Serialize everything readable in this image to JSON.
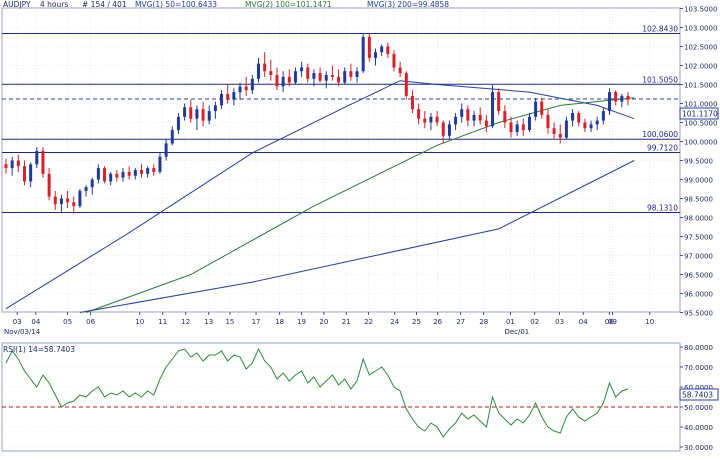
{
  "header": {
    "symbol": "AUDJPY",
    "timeframe": "4 hours",
    "bars": "# 154 / 401",
    "ma1_label": "MVG(1) 50=100.6433",
    "ma2_label": "MVG(2) 100=101.1471",
    "ma3_label": "MVG(3) 200=99.4858"
  },
  "colors": {
    "up_candle": "#1f3a9a",
    "down_candle": "#d8202a",
    "ma50": "#243f9a",
    "ma100": "#2f7a3a",
    "ma200": "#243f9a",
    "levels": "#1e2a7a",
    "current_price": "#2a3fa0",
    "rsi_line": "#2d8a3a",
    "rsi_50_line": "#b21e1e",
    "axis_text": "#1f2a66",
    "grid": "#d9dde8"
  },
  "chart_data": [
    {
      "type": "line",
      "title": "AUDJPY , 4 hours, # 154 / 401",
      "ylim": [
        95.5,
        103.5
      ],
      "y_ticks": [
        "103.5000",
        "103.0000",
        "102.5000",
        "102.0000",
        "101.5000",
        "101.0000",
        "100.5000",
        "100.0000",
        "99.5000",
        "99.0000",
        "98.5000",
        "98.0000",
        "97.5000",
        "97.0000",
        "96.5000",
        "96.0000",
        "95.5000"
      ],
      "x_ticks": [
        "03",
        "04",
        "05",
        "06",
        "10",
        "11",
        "12",
        "13",
        "15",
        "17",
        "18",
        "19",
        "20",
        "21",
        "22",
        "24",
        "25",
        "26",
        "27",
        "28",
        "01",
        "02",
        "03",
        "04",
        "06",
        "09",
        "10"
      ],
      "x_date_labels": [
        "Nov/03/14",
        "Dec/01"
      ],
      "horizontal_levels": [
        "102.8430",
        "101.5050",
        "100.0600",
        "99.7120",
        "98.1310"
      ],
      "current_price": "101.1170",
      "candles_ohlc": [
        [
          99.4,
          99.55,
          99.15,
          99.3
        ],
        [
          99.3,
          99.6,
          99.1,
          99.5
        ],
        [
          99.5,
          99.65,
          99.2,
          99.35
        ],
        [
          99.35,
          99.5,
          98.85,
          98.95
        ],
        [
          98.95,
          99.45,
          98.8,
          99.4
        ],
        [
          99.4,
          99.85,
          99.3,
          99.75
        ],
        [
          99.75,
          99.85,
          99.05,
          99.15
        ],
        [
          99.15,
          99.3,
          98.45,
          98.55
        ],
        [
          98.55,
          98.7,
          98.2,
          98.35
        ],
        [
          98.35,
          98.6,
          98.15,
          98.5
        ],
        [
          98.5,
          98.7,
          98.25,
          98.4
        ],
        [
          98.4,
          98.55,
          98.1,
          98.3
        ],
        [
          98.3,
          98.75,
          98.25,
          98.7
        ],
        [
          98.7,
          98.85,
          98.55,
          98.8
        ],
        [
          98.8,
          99.05,
          98.6,
          99.0
        ],
        [
          99.0,
          99.4,
          98.9,
          99.3
        ],
        [
          99.3,
          99.35,
          98.9,
          98.95
        ],
        [
          98.95,
          99.2,
          98.85,
          99.15
        ],
        [
          99.15,
          99.25,
          98.95,
          99.05
        ],
        [
          99.05,
          99.3,
          98.95,
          99.2
        ],
        [
          99.2,
          99.35,
          99.0,
          99.1
        ],
        [
          99.1,
          99.3,
          99.0,
          99.25
        ],
        [
          99.25,
          99.4,
          99.05,
          99.15
        ],
        [
          99.15,
          99.35,
          99.05,
          99.3
        ],
        [
          99.3,
          99.4,
          99.1,
          99.2
        ],
        [
          99.2,
          99.7,
          99.15,
          99.6
        ],
        [
          99.6,
          100.05,
          99.5,
          99.95
        ],
        [
          99.95,
          100.4,
          99.9,
          100.3
        ],
        [
          100.3,
          100.75,
          100.2,
          100.65
        ],
        [
          100.65,
          101.0,
          100.55,
          100.9
        ],
        [
          100.9,
          101.1,
          100.5,
          100.6
        ],
        [
          100.6,
          100.95,
          100.3,
          100.85
        ],
        [
          100.85,
          101.05,
          100.4,
          100.55
        ],
        [
          100.55,
          100.95,
          100.45,
          100.8
        ],
        [
          100.8,
          101.05,
          100.6,
          100.95
        ],
        [
          100.95,
          101.35,
          100.85,
          101.25
        ],
        [
          101.25,
          101.5,
          101.0,
          101.1
        ],
        [
          101.1,
          101.4,
          100.95,
          101.3
        ],
        [
          101.3,
          101.55,
          101.1,
          101.45
        ],
        [
          101.45,
          101.7,
          101.2,
          101.35
        ],
        [
          101.35,
          101.75,
          101.25,
          101.65
        ],
        [
          101.65,
          102.2,
          101.55,
          102.05
        ],
        [
          102.05,
          102.35,
          101.7,
          101.85
        ],
        [
          101.85,
          102.15,
          101.6,
          101.75
        ],
        [
          101.75,
          101.95,
          101.35,
          101.45
        ],
        [
          101.45,
          101.85,
          101.3,
          101.7
        ],
        [
          101.7,
          101.9,
          101.45,
          101.55
        ],
        [
          101.55,
          101.95,
          101.5,
          101.85
        ],
        [
          101.85,
          102.1,
          101.7,
          101.95
        ],
        [
          101.95,
          102.05,
          101.55,
          101.65
        ],
        [
          101.65,
          101.9,
          101.45,
          101.8
        ],
        [
          101.8,
          101.95,
          101.55,
          101.6
        ],
        [
          101.6,
          101.85,
          101.4,
          101.75
        ],
        [
          101.75,
          102.0,
          101.6,
          101.7
        ],
        [
          101.7,
          101.9,
          101.45,
          101.55
        ],
        [
          101.55,
          101.95,
          101.5,
          101.85
        ],
        [
          101.85,
          102.05,
          101.6,
          101.7
        ],
        [
          101.7,
          101.95,
          101.55,
          101.85
        ],
        [
          101.85,
          102.85,
          101.8,
          102.75
        ],
        [
          102.75,
          102.85,
          102.1,
          102.2
        ],
        [
          102.2,
          102.45,
          102.0,
          102.35
        ],
        [
          102.35,
          102.55,
          102.25,
          102.5
        ],
        [
          102.5,
          102.6,
          102.2,
          102.3
        ],
        [
          102.3,
          102.4,
          101.85,
          101.95
        ],
        [
          101.95,
          102.1,
          101.7,
          101.8
        ],
        [
          101.8,
          101.85,
          101.1,
          101.2
        ],
        [
          101.2,
          101.35,
          100.75,
          100.85
        ],
        [
          100.85,
          101.0,
          100.45,
          100.6
        ],
        [
          100.6,
          100.8,
          100.35,
          100.5
        ],
        [
          100.5,
          100.75,
          100.3,
          100.65
        ],
        [
          100.65,
          100.8,
          100.4,
          100.5
        ],
        [
          100.5,
          100.55,
          99.95,
          100.15
        ],
        [
          100.15,
          100.55,
          100.05,
          100.45
        ],
        [
          100.45,
          100.75,
          100.3,
          100.65
        ],
        [
          100.65,
          101.0,
          100.5,
          100.85
        ],
        [
          100.85,
          100.95,
          100.4,
          100.55
        ],
        [
          100.55,
          100.8,
          100.4,
          100.7
        ],
        [
          100.7,
          100.9,
          100.45,
          100.55
        ],
        [
          100.55,
          100.7,
          100.25,
          100.4
        ],
        [
          100.4,
          101.5,
          100.35,
          101.3
        ],
        [
          101.3,
          101.4,
          100.7,
          100.8
        ],
        [
          100.8,
          100.95,
          100.35,
          100.5
        ],
        [
          100.5,
          100.65,
          100.1,
          100.25
        ],
        [
          100.25,
          100.55,
          100.15,
          100.45
        ],
        [
          100.45,
          100.6,
          100.15,
          100.3
        ],
        [
          100.3,
          100.75,
          100.25,
          100.65
        ],
        [
          100.65,
          101.15,
          100.55,
          101.05
        ],
        [
          101.05,
          101.15,
          100.6,
          100.7
        ],
        [
          100.7,
          100.85,
          100.2,
          100.35
        ],
        [
          100.35,
          100.5,
          100.05,
          100.2
        ],
        [
          100.2,
          100.45,
          99.95,
          100.1
        ],
        [
          100.1,
          100.65,
          100.05,
          100.55
        ],
        [
          100.55,
          100.85,
          100.4,
          100.75
        ],
        [
          100.75,
          100.8,
          100.4,
          100.5
        ],
        [
          100.5,
          100.6,
          100.25,
          100.35
        ],
        [
          100.35,
          100.55,
          100.25,
          100.45
        ],
        [
          100.45,
          100.65,
          100.3,
          100.55
        ],
        [
          100.55,
          100.9,
          100.45,
          100.8
        ],
        [
          100.8,
          101.4,
          100.7,
          101.3
        ],
        [
          101.3,
          101.35,
          100.95,
          101.05
        ],
        [
          101.05,
          101.25,
          100.9,
          101.2
        ],
        [
          101.2,
          101.3,
          100.95,
          101.1
        ]
      ],
      "series": [
        {
          "name": "MVG(1) 50",
          "points": [
            [
              0,
              95.6
            ],
            [
              20,
              97.6
            ],
            [
              40,
              99.7
            ],
            [
              55,
              100.9
            ],
            [
              64,
              101.6
            ],
            [
              70,
              101.5
            ],
            [
              85,
              101.3
            ],
            [
              96,
              100.95
            ],
            [
              102,
              100.6
            ]
          ]
        },
        {
          "name": "MVG(2) 100",
          "points": [
            [
              13,
              95.5
            ],
            [
              30,
              96.5
            ],
            [
              50,
              98.3
            ],
            [
              70,
              99.9
            ],
            [
              80,
              100.5
            ],
            [
              90,
              100.95
            ],
            [
              102,
              101.15
            ]
          ]
        },
        {
          "name": "MVG(3) 200",
          "points": [
            [
              12,
              95.5
            ],
            [
              40,
              96.3
            ],
            [
              80,
              97.7
            ],
            [
              102,
              99.5
            ]
          ]
        }
      ]
    },
    {
      "type": "line",
      "title": "RSI(1) 14=58.7403",
      "ylim": [
        28,
        82
      ],
      "y_ticks": [
        "80.0000",
        "70.0000",
        "60.0000",
        "50.0000",
        "40.0000",
        "30.0000"
      ],
      "current_value": "58.7403",
      "reference_level": 50,
      "series": [
        {
          "name": "RSI(1) 14",
          "values": [
            72,
            78,
            74,
            68,
            64,
            60,
            66,
            62,
            56,
            50,
            52,
            53,
            56,
            55,
            58,
            60,
            55,
            57,
            56,
            58,
            55,
            57,
            55,
            58,
            56,
            64,
            70,
            74,
            78,
            79,
            75,
            77,
            73,
            76,
            76,
            78,
            73,
            76,
            75,
            69,
            72,
            79,
            73,
            70,
            64,
            67,
            63,
            66,
            68,
            62,
            65,
            60,
            63,
            66,
            61,
            64,
            59,
            63,
            74,
            66,
            68,
            70,
            66,
            60,
            58,
            49,
            44,
            40,
            38,
            42,
            40,
            35,
            39,
            42,
            47,
            44,
            46,
            43,
            40,
            55,
            47,
            44,
            41,
            44,
            42,
            46,
            52,
            45,
            40,
            38,
            37,
            45,
            49,
            45,
            43,
            45,
            47,
            52,
            62,
            55,
            58,
            59
          ]
        }
      ]
    }
  ]
}
